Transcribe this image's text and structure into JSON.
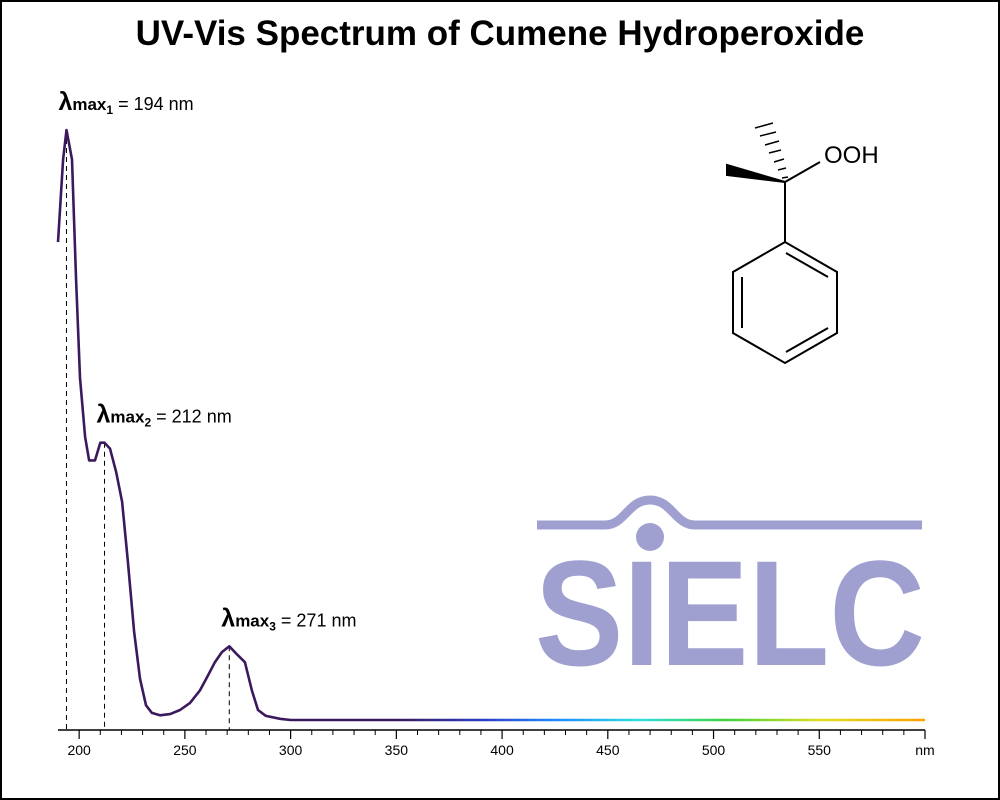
{
  "chart_data": {
    "type": "line",
    "title": "UV-Vis Spectrum of Cumene Hydroperoxide",
    "x": [
      190,
      192.4,
      194,
      196.6,
      198.5,
      200.4,
      202.8,
      204.7,
      207.5,
      210,
      212,
      214.6,
      217.5,
      220.3,
      223,
      226,
      228.8,
      231.6,
      234.4,
      238.2,
      243,
      247.7,
      252.4,
      257.1,
      261,
      264.2,
      267.5,
      271,
      275,
      278.4,
      281.7,
      284.6,
      288.3,
      295,
      300,
      400,
      500,
      600
    ],
    "values": [
      0.81,
      0.95,
      1.0,
      0.95,
      0.75,
      0.58,
      0.48,
      0.44,
      0.44,
      0.47,
      0.47,
      0.46,
      0.42,
      0.37,
      0.27,
      0.15,
      0.07,
      0.025,
      0.012,
      0.008,
      0.01,
      0.017,
      0.029,
      0.05,
      0.076,
      0.098,
      0.115,
      0.125,
      0.11,
      0.098,
      0.05,
      0.017,
      0.007,
      0.002,
      0,
      0,
      0,
      0
    ],
    "color": "#3a1a5c",
    "xlim": [
      190,
      600
    ],
    "ylim": [
      0,
      1
    ],
    "xticks": [
      200,
      250,
      300,
      350,
      400,
      450,
      500,
      550,
      {
        "value": 600,
        "label": "nm"
      }
    ],
    "annotations": [
      {
        "x": 194,
        "symbol": "λ",
        "sub": "max",
        "index": "1",
        "label": " = 194 nm"
      },
      {
        "x": 212,
        "symbol": "λ",
        "sub": "max",
        "index": "2",
        "label": " = 212 nm"
      },
      {
        "x": 271,
        "symbol": "λ",
        "sub": "max",
        "index": "3",
        "label": " = 271 nm"
      }
    ],
    "structure_label": "OOH",
    "watermark": "SIELC"
  }
}
